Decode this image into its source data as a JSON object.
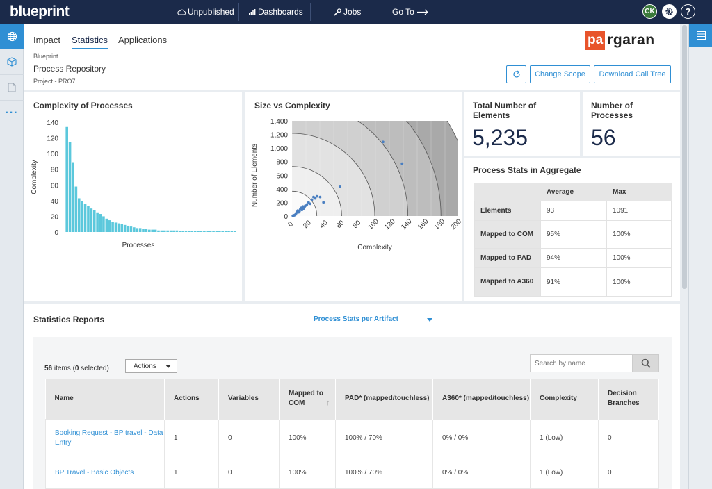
{
  "topbar": {
    "logo": "blueprint",
    "nav": [
      {
        "label": "Unpublished"
      },
      {
        "label": "Dashboards"
      },
      {
        "label": "Jobs"
      },
      {
        "label": "Go To"
      }
    ],
    "avatar": "CK",
    "help": "?"
  },
  "header": {
    "tabs": [
      {
        "label": "Impact"
      },
      {
        "label": "Statistics"
      },
      {
        "label": "Applications"
      }
    ],
    "active_tab": "Statistics",
    "breadcrumb": "Blueprint",
    "title": "Process Repository",
    "subtitle": "Project - PRO7",
    "buttons": {
      "change_scope": "Change Scope",
      "download": "Download Call Tree"
    },
    "brand": {
      "pa": "pa",
      "rest": "rgaran"
    }
  },
  "complexity_panel": {
    "title": "Complexity of Processes"
  },
  "size_panel": {
    "title": "Size vs Complexity"
  },
  "total_elements": {
    "label": "Total Number of Elements",
    "value": "5,235"
  },
  "num_processes": {
    "label": "Number of Processes",
    "value": "56"
  },
  "aggregate": {
    "title": "Process Stats in Aggregate",
    "columns": [
      "",
      "Average",
      "Max"
    ],
    "rows": [
      {
        "label": "Elements",
        "avg": "93",
        "max": "1091"
      },
      {
        "label": "Mapped to COM",
        "avg": "95%",
        "max": "100%"
      },
      {
        "label": "Mapped to PAD",
        "avg": "94%",
        "max": "100%"
      },
      {
        "label": "Mapped to A360",
        "avg": "91%",
        "max": "100%"
      }
    ]
  },
  "reports": {
    "title": "Statistics Reports",
    "selected_report": "Process Stats per Artifact",
    "count_total": "56",
    "count_selected": "0",
    "actions_label": "Actions",
    "search_placeholder": "Search by name",
    "columns": [
      "Name",
      "Actions",
      "Variables",
      "Mapped to COM",
      "PAD* (mapped/touchless)",
      "A360* (mapped/touchless)",
      "Complexity",
      "Decision Branches"
    ],
    "rows": [
      {
        "name": "Booking Request - BP travel - Data Entry",
        "actions": "1",
        "variables": "0",
        "com": "100%",
        "pad": "100% / 70%",
        "a360": "0% / 0%",
        "complexity": "1 (Low)",
        "branches": "0"
      },
      {
        "name": "BP Travel - Basic Objects",
        "actions": "1",
        "variables": "0",
        "com": "100%",
        "pad": "100% / 70%",
        "a360": "0% / 0%",
        "complexity": "1 (Low)",
        "branches": "0"
      }
    ]
  },
  "chart_data": [
    {
      "type": "bar",
      "title": "Complexity of Processes",
      "xlabel": "Processes",
      "ylabel": "Complexity",
      "ylim": [
        0,
        140
      ],
      "yticks": [
        0,
        20,
        40,
        60,
        80,
        100,
        120,
        140
      ],
      "color": "#5bc8dc",
      "grid": false,
      "values": [
        134,
        115,
        89,
        58,
        43,
        39,
        36,
        33,
        30,
        28,
        25,
        23,
        20,
        17,
        15,
        13,
        12,
        11,
        10,
        9,
        8,
        7,
        6,
        5,
        5,
        4,
        4,
        3,
        3,
        3,
        2,
        2,
        2,
        2,
        2,
        2,
        2,
        1,
        1,
        1,
        1,
        1,
        1,
        1,
        1,
        1,
        1,
        1,
        1,
        1,
        1,
        1,
        1,
        1,
        1,
        1
      ]
    },
    {
      "type": "scatter",
      "title": "Size vs Complexity",
      "xlabel": "Complexity",
      "ylabel": "Number of Elements",
      "xlim": [
        0,
        200
      ],
      "ylim": [
        0,
        1400
      ],
      "xticks": [
        0,
        20,
        40,
        60,
        80,
        100,
        120,
        140,
        160,
        180,
        200
      ],
      "yticks": [
        0,
        200,
        400,
        600,
        800,
        1000,
        1200,
        1400
      ],
      "yticklabels": [
        "0",
        "200",
        "400",
        "600",
        "800",
        "1,000",
        "1,200",
        "1,400"
      ],
      "point_color": "#4a7fc1",
      "points": [
        [
          1,
          5
        ],
        [
          2,
          8
        ],
        [
          3,
          12
        ],
        [
          4,
          20
        ],
        [
          5,
          40
        ],
        [
          6,
          60
        ],
        [
          7,
          80
        ],
        [
          8,
          55
        ],
        [
          9,
          70
        ],
        [
          10,
          100
        ],
        [
          11,
          120
        ],
        [
          12,
          90
        ],
        [
          13,
          140
        ],
        [
          14,
          110
        ],
        [
          15,
          130
        ],
        [
          16,
          150
        ],
        [
          18,
          170
        ],
        [
          20,
          200
        ],
        [
          22,
          180
        ],
        [
          24,
          240
        ],
        [
          26,
          280
        ],
        [
          28,
          260
        ],
        [
          30,
          290
        ],
        [
          34,
          280
        ],
        [
          38,
          200
        ],
        [
          58,
          430
        ],
        [
          110,
          1090
        ],
        [
          133,
          770
        ]
      ]
    }
  ]
}
